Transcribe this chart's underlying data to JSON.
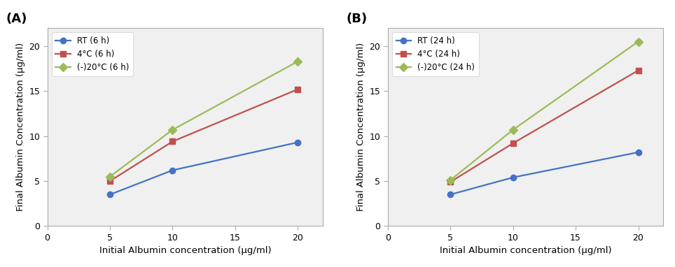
{
  "x": [
    5,
    10,
    20
  ],
  "panel_A": {
    "label": "(A)",
    "RT": {
      "values": [
        3.5,
        6.2,
        9.3
      ],
      "label": "RT (6 h)",
      "color": "#4472C4",
      "marker": "o"
    },
    "4C": {
      "values": [
        5.0,
        9.4,
        15.2
      ],
      "label": "4°C (6 h)",
      "color": "#C0504D",
      "marker": "s"
    },
    "m20C": {
      "values": [
        5.5,
        10.7,
        18.3
      ],
      "label": "(-)20°C (6 h)",
      "color": "#9BBB59",
      "marker": "D"
    }
  },
  "panel_B": {
    "label": "(B)",
    "RT": {
      "values": [
        3.5,
        5.4,
        8.2
      ],
      "label": "RT (24 h)",
      "color": "#4472C4",
      "marker": "o"
    },
    "4C": {
      "values": [
        4.9,
        9.2,
        17.3
      ],
      "label": "4°C (24 h)",
      "color": "#C0504D",
      "marker": "s"
    },
    "m20C": {
      "values": [
        5.1,
        10.7,
        20.5
      ],
      "label": "(-)20°C (24 h)",
      "color": "#9BBB59",
      "marker": "D"
    }
  },
  "xlabel": "Initial Albumin concentration (μg/ml)",
  "ylabel": "Final Albumin Concentration (μg/ml)",
  "xlim": [
    0,
    22
  ],
  "ylim": [
    0,
    22
  ],
  "xticks": [
    0,
    5,
    10,
    15,
    20
  ],
  "yticks": [
    0,
    5,
    10,
    15,
    20
  ],
  "marker_size": 6,
  "line_width": 1.6,
  "legend_fontsize": 8.5,
  "axis_fontsize": 9.5,
  "tick_fontsize": 9,
  "label_fontsize": 13,
  "axes_facecolor": "#f0f0f0",
  "figure_facecolor": "#ffffff",
  "spine_color": "#aaaaaa"
}
